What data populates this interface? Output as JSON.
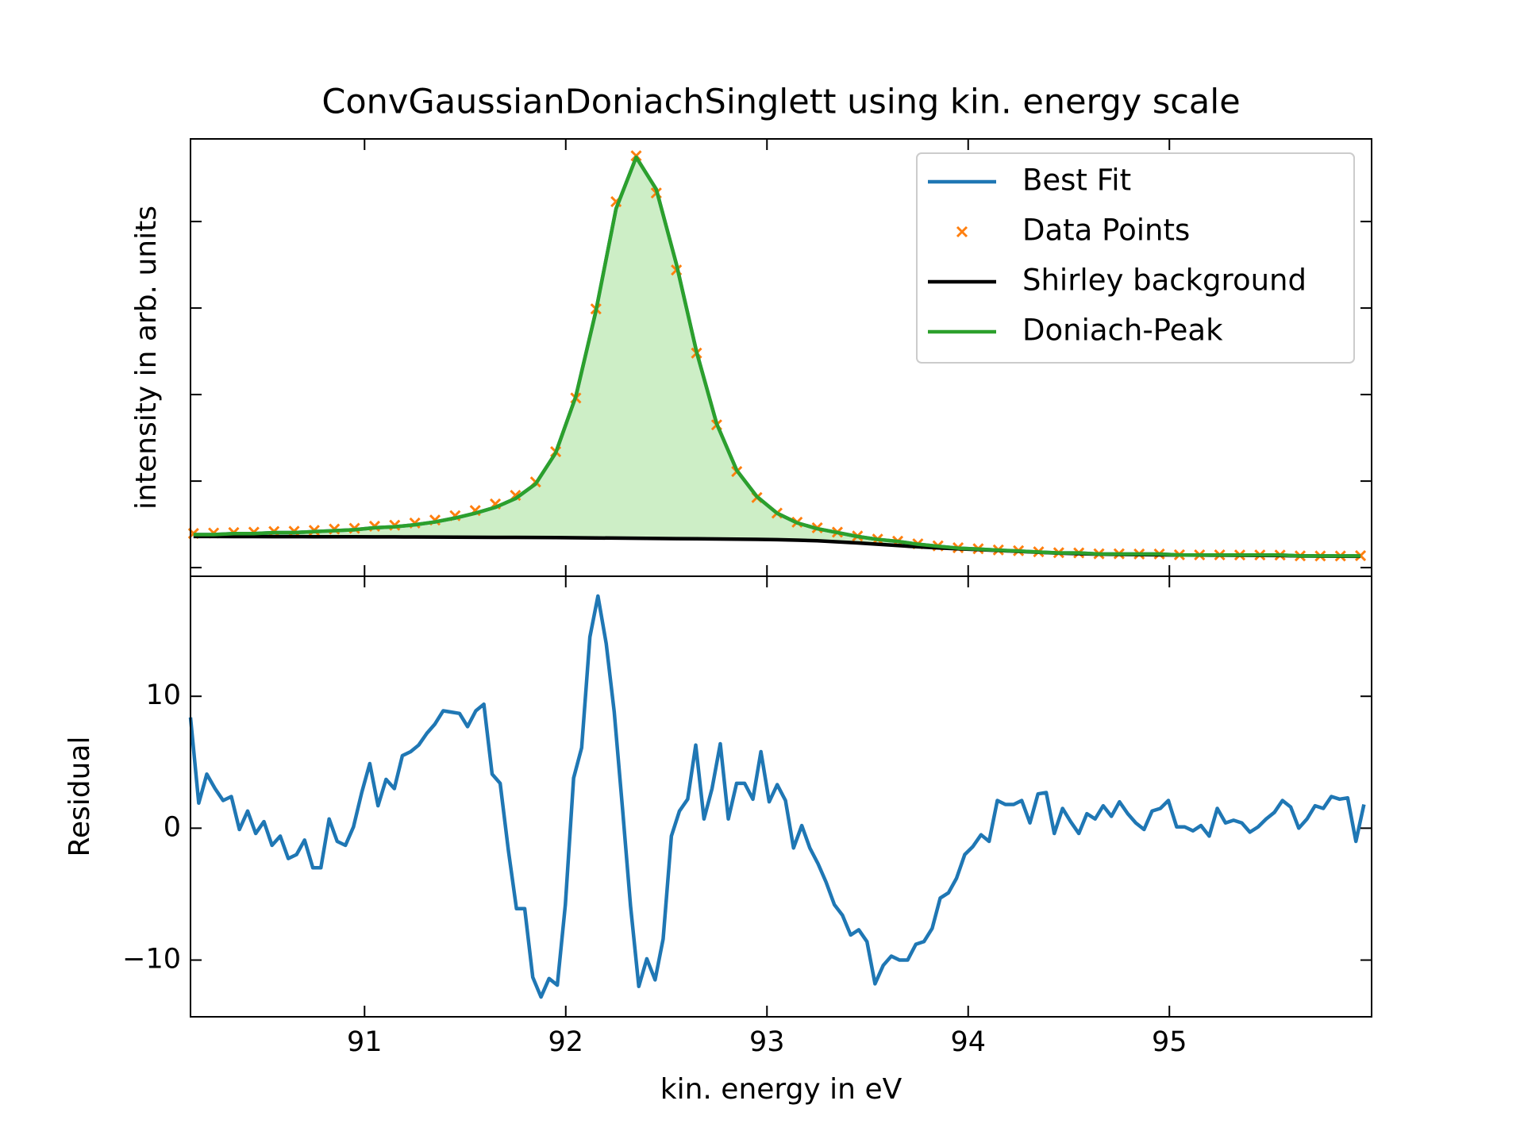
{
  "chart_data": [
    {
      "type": "line",
      "title": "ConvGaussianDoniachSinglett using kin. energy scale",
      "ylabel": "intensity in arb. units",
      "xlim": [
        90.135,
        96.005
      ],
      "xticks": [
        91,
        92,
        93,
        94,
        95
      ],
      "xtick_labels": false,
      "ylim": [
        -100,
        4955
      ],
      "yticks": [
        0,
        1000,
        2000,
        3000,
        4000
      ],
      "ytick_labels": false,
      "legend": "upper right",
      "x": [
        90.15,
        90.25,
        90.35,
        90.45,
        90.55,
        90.65,
        90.75,
        90.85,
        90.95,
        91.05,
        91.15,
        91.25,
        91.35,
        91.45,
        91.55,
        91.65,
        91.75,
        91.85,
        91.95,
        92.05,
        92.15,
        92.25,
        92.35,
        92.45,
        92.55,
        92.65,
        92.75,
        92.85,
        92.95,
        93.05,
        93.15,
        93.25,
        93.35,
        93.45,
        93.55,
        93.65,
        93.75,
        93.85,
        93.95,
        94.05,
        94.15,
        94.25,
        94.35,
        94.45,
        94.55,
        94.65,
        94.75,
        94.85,
        94.95,
        95.05,
        95.15,
        95.25,
        95.35,
        95.45,
        95.55,
        95.65,
        95.75,
        95.85,
        95.95
      ],
      "series": [
        {
          "name": "Best Fit",
          "color": "#1f77b4",
          "marker": "none",
          "values": [
            382,
            382,
            393,
            393,
            405,
            405,
            416,
            427,
            438,
            461,
            472,
            495,
            528,
            573,
            629,
            697,
            798,
            967,
            1326,
            1978,
            2967,
            4148,
            4743,
            4372,
            3507,
            2495,
            1664,
            1124,
            821,
            629,
            517,
            450,
            405,
            360,
            326,
            303,
            270,
            247,
            225,
            214,
            202,
            191,
            180,
            169,
            169,
            157,
            157,
            157,
            157,
            146,
            146,
            146,
            146,
            146,
            146,
            135,
            135,
            135,
            135
          ]
        },
        {
          "name": "Data Points",
          "color": "#ff7f0e",
          "marker": "x",
          "values": [
            395,
            400,
            405,
            410,
            418,
            420,
            430,
            445,
            455,
            478,
            490,
            515,
            550,
            600,
            660,
            735,
            835,
            990,
            1340,
            1960,
            2990,
            4230,
            4760,
            4330,
            3440,
            2480,
            1650,
            1110,
            810,
            630,
            525,
            460,
            410,
            365,
            330,
            305,
            275,
            252,
            230,
            218,
            205,
            195,
            183,
            172,
            170,
            160,
            160,
            158,
            158,
            148,
            147,
            147,
            146,
            146,
            145,
            136,
            135,
            135,
            138
          ]
        },
        {
          "name": "Shirley background",
          "color": "#000000",
          "marker": "none",
          "values": [
            360,
            360,
            359,
            359,
            358,
            358,
            357,
            357,
            356,
            355,
            355,
            354,
            353,
            352,
            351,
            350,
            349,
            348,
            347,
            345,
            343,
            341,
            339,
            337,
            335,
            333,
            331,
            329,
            327,
            323,
            318,
            310,
            298,
            285,
            270,
            255,
            240,
            228,
            218,
            208,
            198,
            188,
            178,
            167,
            162,
            155,
            152,
            150,
            148,
            145,
            144,
            143,
            142,
            141,
            140,
            134,
            133,
            132,
            131
          ]
        },
        {
          "name": "Doniach-Peak",
          "color": "#2ca02c",
          "marker": "none",
          "fill_to": 2,
          "fill_color": "#cdeec6",
          "values": [
            382,
            382,
            393,
            393,
            405,
            405,
            416,
            427,
            438,
            461,
            472,
            495,
            528,
            573,
            629,
            697,
            798,
            967,
            1326,
            1978,
            2967,
            4148,
            4743,
            4372,
            3507,
            2495,
            1664,
            1124,
            821,
            629,
            517,
            450,
            405,
            360,
            326,
            303,
            270,
            247,
            225,
            214,
            202,
            191,
            180,
            169,
            169,
            157,
            157,
            157,
            157,
            146,
            146,
            146,
            146,
            146,
            146,
            135,
            135,
            135,
            135
          ]
        }
      ]
    },
    {
      "type": "line",
      "xlabel": "kin. energy in eV",
      "ylabel": "Residual",
      "xlim": [
        90.135,
        96.005
      ],
      "xticks": [
        91,
        92,
        93,
        94,
        95
      ],
      "xtick_labels": true,
      "ylim": [
        -14.3,
        19.1
      ],
      "yticks": [
        {
          "value": -10,
          "label": "−10"
        },
        0,
        10
      ],
      "ytick_labels": true,
      "x": [
        90.135,
        90.176,
        90.216,
        90.257,
        90.297,
        90.338,
        90.378,
        90.419,
        90.459,
        90.5,
        90.54,
        90.581,
        90.621,
        90.662,
        90.702,
        90.743,
        90.783,
        90.824,
        90.864,
        90.905,
        90.945,
        90.986,
        91.026,
        91.067,
        91.107,
        91.148,
        91.188,
        91.229,
        91.269,
        91.31,
        91.35,
        91.391,
        91.431,
        91.472,
        91.512,
        91.553,
        91.593,
        91.634,
        91.674,
        91.715,
        91.755,
        91.796,
        91.836,
        91.877,
        91.917,
        91.958,
        91.998,
        92.039,
        92.079,
        92.12,
        92.16,
        92.201,
        92.241,
        92.282,
        92.322,
        92.363,
        92.403,
        92.444,
        92.484,
        92.525,
        92.565,
        92.606,
        92.646,
        92.687,
        92.727,
        92.768,
        92.808,
        92.849,
        92.889,
        92.93,
        92.97,
        93.011,
        93.051,
        93.092,
        93.132,
        93.173,
        93.213,
        93.254,
        93.294,
        93.335,
        93.375,
        93.416,
        93.456,
        93.497,
        93.537,
        93.578,
        93.618,
        93.659,
        93.699,
        93.74,
        93.78,
        93.821,
        93.861,
        93.902,
        93.942,
        93.983,
        94.023,
        94.064,
        94.104,
        94.145,
        94.185,
        94.226,
        94.266,
        94.307,
        94.347,
        94.388,
        94.428,
        94.469,
        94.509,
        94.55,
        94.59,
        94.631,
        94.671,
        94.712,
        94.752,
        94.793,
        94.833,
        94.874,
        94.914,
        94.955,
        94.995,
        95.036,
        95.076,
        95.117,
        95.157,
        95.198,
        95.238,
        95.279,
        95.319,
        95.36,
        95.4,
        95.441,
        95.481,
        95.522,
        95.562,
        95.603,
        95.643,
        95.684,
        95.724,
        95.765,
        95.805,
        95.846,
        95.886,
        95.927,
        95.967
      ],
      "series": [
        {
          "color": "#1f77b4",
          "marker": "none",
          "values": [
            8.4,
            1.9,
            4.1,
            3.0,
            2.1,
            2.4,
            -0.1,
            1.3,
            -0.4,
            0.5,
            -1.3,
            -0.6,
            -2.3,
            -2.0,
            -0.9,
            -3.0,
            -3.0,
            0.7,
            -1.0,
            -1.3,
            0.1,
            2.7,
            4.9,
            1.7,
            3.7,
            3.0,
            5.5,
            5.8,
            6.3,
            7.2,
            7.9,
            8.9,
            8.8,
            8.7,
            7.7,
            8.9,
            9.4,
            4.1,
            3.4,
            -1.7,
            -6.1,
            -6.1,
            -11.3,
            -12.8,
            -11.4,
            -11.9,
            -5.8,
            3.8,
            6.1,
            14.5,
            17.6,
            14.0,
            8.8,
            1.5,
            -5.9,
            -12.0,
            -9.9,
            -11.5,
            -8.4,
            -0.6,
            1.3,
            2.2,
            6.3,
            0.7,
            3.0,
            6.4,
            0.7,
            3.4,
            3.4,
            2.2,
            5.8,
            2.0,
            3.3,
            2.1,
            -1.5,
            0.2,
            -1.5,
            -2.7,
            -4.1,
            -5.8,
            -6.6,
            -8.1,
            -7.7,
            -8.6,
            -11.8,
            -10.4,
            -9.7,
            -10.0,
            -10.0,
            -8.8,
            -8.6,
            -7.6,
            -5.3,
            -4.9,
            -3.8,
            -2.0,
            -1.4,
            -0.5,
            -1.0,
            2.1,
            1.8,
            1.8,
            2.1,
            0.4,
            2.6,
            2.7,
            -0.4,
            1.5,
            0.5,
            -0.4,
            1.1,
            0.7,
            1.7,
            0.9,
            2.0,
            1.1,
            0.4,
            -0.1,
            1.3,
            1.5,
            2.1,
            0.1,
            0.1,
            -0.2,
            0.2,
            -0.6,
            1.5,
            0.4,
            0.6,
            0.4,
            -0.3,
            0.1,
            0.7,
            1.2,
            2.1,
            1.6,
            0.0,
            0.7,
            1.7,
            1.5,
            2.4,
            2.2,
            2.3,
            -1.0,
            1.8
          ]
        }
      ]
    }
  ]
}
